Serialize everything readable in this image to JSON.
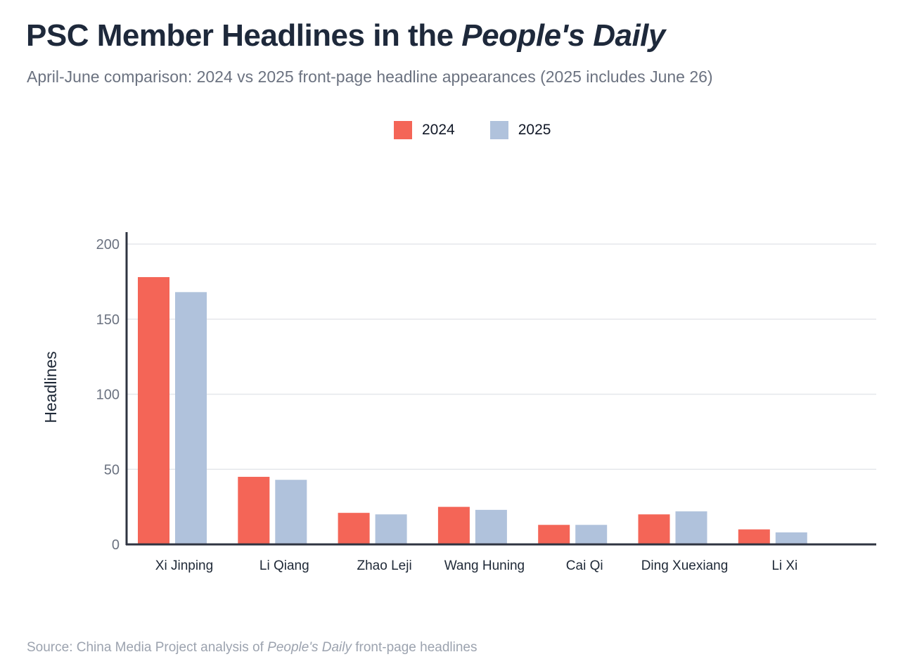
{
  "header": {
    "title_prefix": "PSC Member Headlines in the ",
    "title_italic": "People's Daily",
    "subtitle": "April-June comparison: 2024 vs 2025 front-page headline appearances (2025 includes June 26)"
  },
  "footer": {
    "source_prefix": "Source: China Media Project analysis of ",
    "source_italic": "People's Daily",
    "source_suffix": " front-page headlines"
  },
  "colors": {
    "series_2024": "#f46557",
    "series_2025": "#b0c2dc",
    "axis": "#2f3441",
    "grid": "#e5e7eb",
    "tick_text": "#6b7280",
    "label_text": "#1f2937"
  },
  "chart_data": {
    "type": "bar",
    "title": "PSC Member Headlines in the People's Daily",
    "xlabel": "",
    "ylabel": "Headlines",
    "ylim": [
      0,
      200
    ],
    "yticks": [
      0,
      50,
      100,
      150,
      200
    ],
    "grid": true,
    "legend_position": "top-center",
    "categories": [
      "Xi Jinping",
      "Li Qiang",
      "Zhao Leji",
      "Wang Huning",
      "Cai Qi",
      "Ding Xuexiang",
      "Li Xi"
    ],
    "series": [
      {
        "name": "2024",
        "values": [
          178,
          45,
          21,
          25,
          13,
          20,
          10
        ]
      },
      {
        "name": "2025",
        "values": [
          168,
          43,
          20,
          23,
          13,
          22,
          8
        ]
      }
    ]
  }
}
